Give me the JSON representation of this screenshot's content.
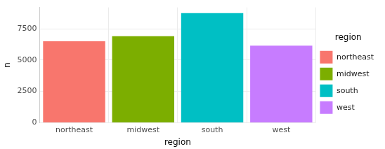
{
  "chart_data": {
    "type": "bar",
    "x_label": "region",
    "y_label": "n",
    "categories": [
      "northeast",
      "midwest",
      "south",
      "west"
    ],
    "values": [
      6500,
      6900,
      8750,
      6150
    ],
    "colors": [
      "#F8766D",
      "#7CAE00",
      "#00BFC4",
      "#C77CFF"
    ],
    "ylim": [
      0,
      9200
    ],
    "yticks": [
      0,
      2500,
      5000,
      7500
    ],
    "grid": true,
    "legend": "right",
    "legend_title": "region"
  }
}
